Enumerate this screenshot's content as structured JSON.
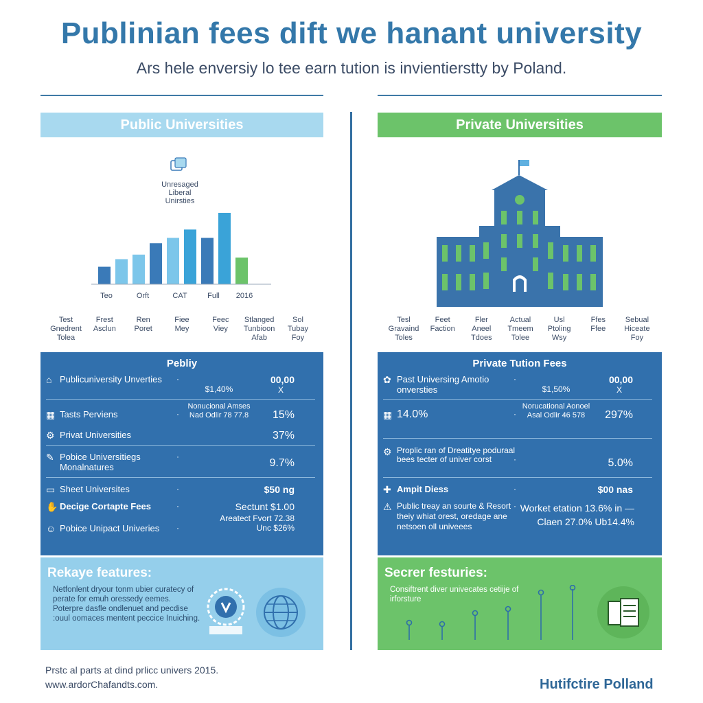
{
  "title": "Publinian fees dift we hanant university",
  "subtitle": "Ars hele enversiy lo tee earn tution is invientierstty by Poland.",
  "public": {
    "header": "Public Universities",
    "chart_note": [
      "Unresaged",
      "Liberal",
      "Unirsties"
    ],
    "mini_labels": [
      [
        "Test",
        "Gnedrent",
        "Tolea"
      ],
      [
        "Frest",
        "Asclun"
      ],
      [
        "Ren",
        "Poret"
      ],
      [
        "Fiee",
        "Mey"
      ],
      [
        "Feec",
        "Viey"
      ],
      [
        "Stlanged",
        "Tunbioon",
        "Afab"
      ],
      [
        "Sol",
        "Tubay",
        "Foy"
      ]
    ],
    "panel": {
      "title": "Pebliy",
      "rows": [
        {
          "icon": "building-icon",
          "label": "Publicuniversity Unverties",
          "mid": "$1,40%",
          "value": "00,00",
          "extra": "X"
        },
        {
          "icon": "grid-icon",
          "label": "Tasts Perviens",
          "mid": "Nonucional Amses Nad Odlir 78 77.8",
          "value": "15%"
        },
        {
          "icon": "gear-icon",
          "label": "Privat Universities",
          "value": "37%"
        },
        {
          "icon": "pen-icon",
          "label": "Pobice Universitiegs Monalnatures",
          "value": "9.7%"
        },
        {
          "icon": "card-icon",
          "label": "Sheet Universites",
          "value": "$50 ng"
        },
        {
          "icon": "handshake-icon",
          "label": "Decige Cortapte Fees",
          "mid": "Sectunt $1.00",
          "value": ""
        },
        {
          "icon": "person-icon",
          "label": "Pobice Unipact Univeries",
          "mid": "Areatect Fvort 72.38 Unc $26%",
          "value": ""
        }
      ]
    },
    "features": {
      "title": "Rekaye features:",
      "text": "Netfonlent dryour tonm ubier curatecy of perate for emuh oressedy eemes. Poterpre dasfle ondlenuet and pecdise :ouul oomaces mentent peccice Inuiching."
    }
  },
  "private": {
    "header": "Private Universities",
    "mini_labels": [
      [
        "Tesl",
        "Gravaind",
        "Toles"
      ],
      [
        "Feet",
        "Faction"
      ],
      [
        "Fler",
        "Aneel",
        "Tdoes"
      ],
      [
        "Actual",
        "Tmeem",
        "Tolee"
      ],
      [
        "Usl",
        "Ptoling",
        "Wsy"
      ],
      [
        "Ffes",
        "Ffee"
      ],
      [
        "Sebual",
        "Hiceate",
        "Foy"
      ]
    ],
    "panel": {
      "title": "Private Tution Fees",
      "rows": [
        {
          "icon": "rosette-icon",
          "label": "Past Universing Amotio onversties",
          "mid": "$1,50%",
          "value": "00,00",
          "extra": "X"
        },
        {
          "icon": "grid-icon",
          "label": "14.0%",
          "mid": "Norucational Aonoel Asal Odlir 46 578",
          "value": "297%"
        },
        {
          "icon": "gear-icon",
          "label": "Proplic ran of Dreatitye poduraal bees tecter of univer corst",
          "value": "5.0%"
        },
        {
          "icon": "cross-icon",
          "label": "Ampit Diess",
          "value": "$00 nas"
        },
        {
          "icon": "warning-icon",
          "label": "Public treay an sourte & Resort theiy whiat orest, oredage ane netsoen oll univeees",
          "mid": "Worket etation 13.6% in — Claen 27.0% Ub14.4%",
          "value": ""
        }
      ]
    },
    "features": {
      "title": "Secrer festuries:",
      "text": "Consiftrent diver univecates cetiije of irforsture"
    }
  },
  "chart_data": {
    "type": "bar",
    "categories": [
      "Teo",
      "Orft",
      "",
      "CAT",
      "",
      "Full",
      "",
      "2016",
      ""
    ],
    "values": [
      2.3,
      3.3,
      3.9,
      5.4,
      6.1,
      7.2,
      6.1,
      9.4,
      3.5
    ],
    "colors": [
      "#3a7ab8",
      "#7cc6ea",
      "#7cc6ea",
      "#3a7ab8",
      "#7cc6ea",
      "#3aa3d8",
      "#3a7ab8",
      "#3aa3d8",
      "#6cc36a"
    ]
  },
  "footer": {
    "source_line1": "Prstc al parts at dind prlicc univers 2015.",
    "source_line2": "www.ardorChafandts.com.",
    "brand": "Hutifctire Polland"
  },
  "colors": {
    "accent_blue": "#3170ad",
    "light_blue": "#a8d9ef",
    "green": "#6cc36a"
  }
}
